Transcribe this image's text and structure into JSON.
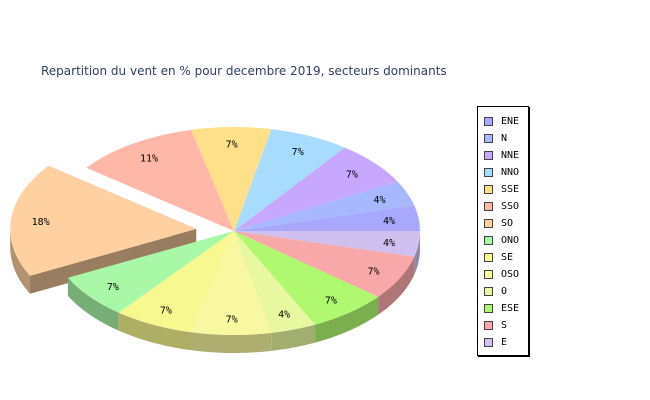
{
  "chart_data": {
    "type": "pie",
    "title": "Repartition du vent en % pour decembre 2019, secteurs dominants",
    "categories": [
      "ENE",
      "N",
      "NNE",
      "NNO",
      "SSE",
      "SSO",
      "SO",
      "ONO",
      "SE",
      "OSO",
      "O",
      "ESE",
      "S",
      "E"
    ],
    "values": [
      4,
      4,
      7,
      7,
      7,
      11,
      18,
      7,
      7,
      7,
      4,
      7,
      7,
      4
    ],
    "data_labels": [
      "4%",
      "4%",
      "7%",
      "7%",
      "7%",
      "11%",
      "18%",
      "7%",
      "7%",
      "7%",
      "4%",
      "7%",
      "7%",
      "4%"
    ],
    "colors": [
      "#a8a8ff",
      "#a8b8ff",
      "#c8a8ff",
      "#a8dcff",
      "#ffe08a",
      "#ffb8a8",
      "#ffd0a0",
      "#a8f8a8",
      "#f8f890",
      "#f8f8a0",
      "#e8f8a0",
      "#b0f870",
      "#f8a8a8",
      "#d0c0f0"
    ],
    "exploded": "SO",
    "legend_position": "right"
  }
}
